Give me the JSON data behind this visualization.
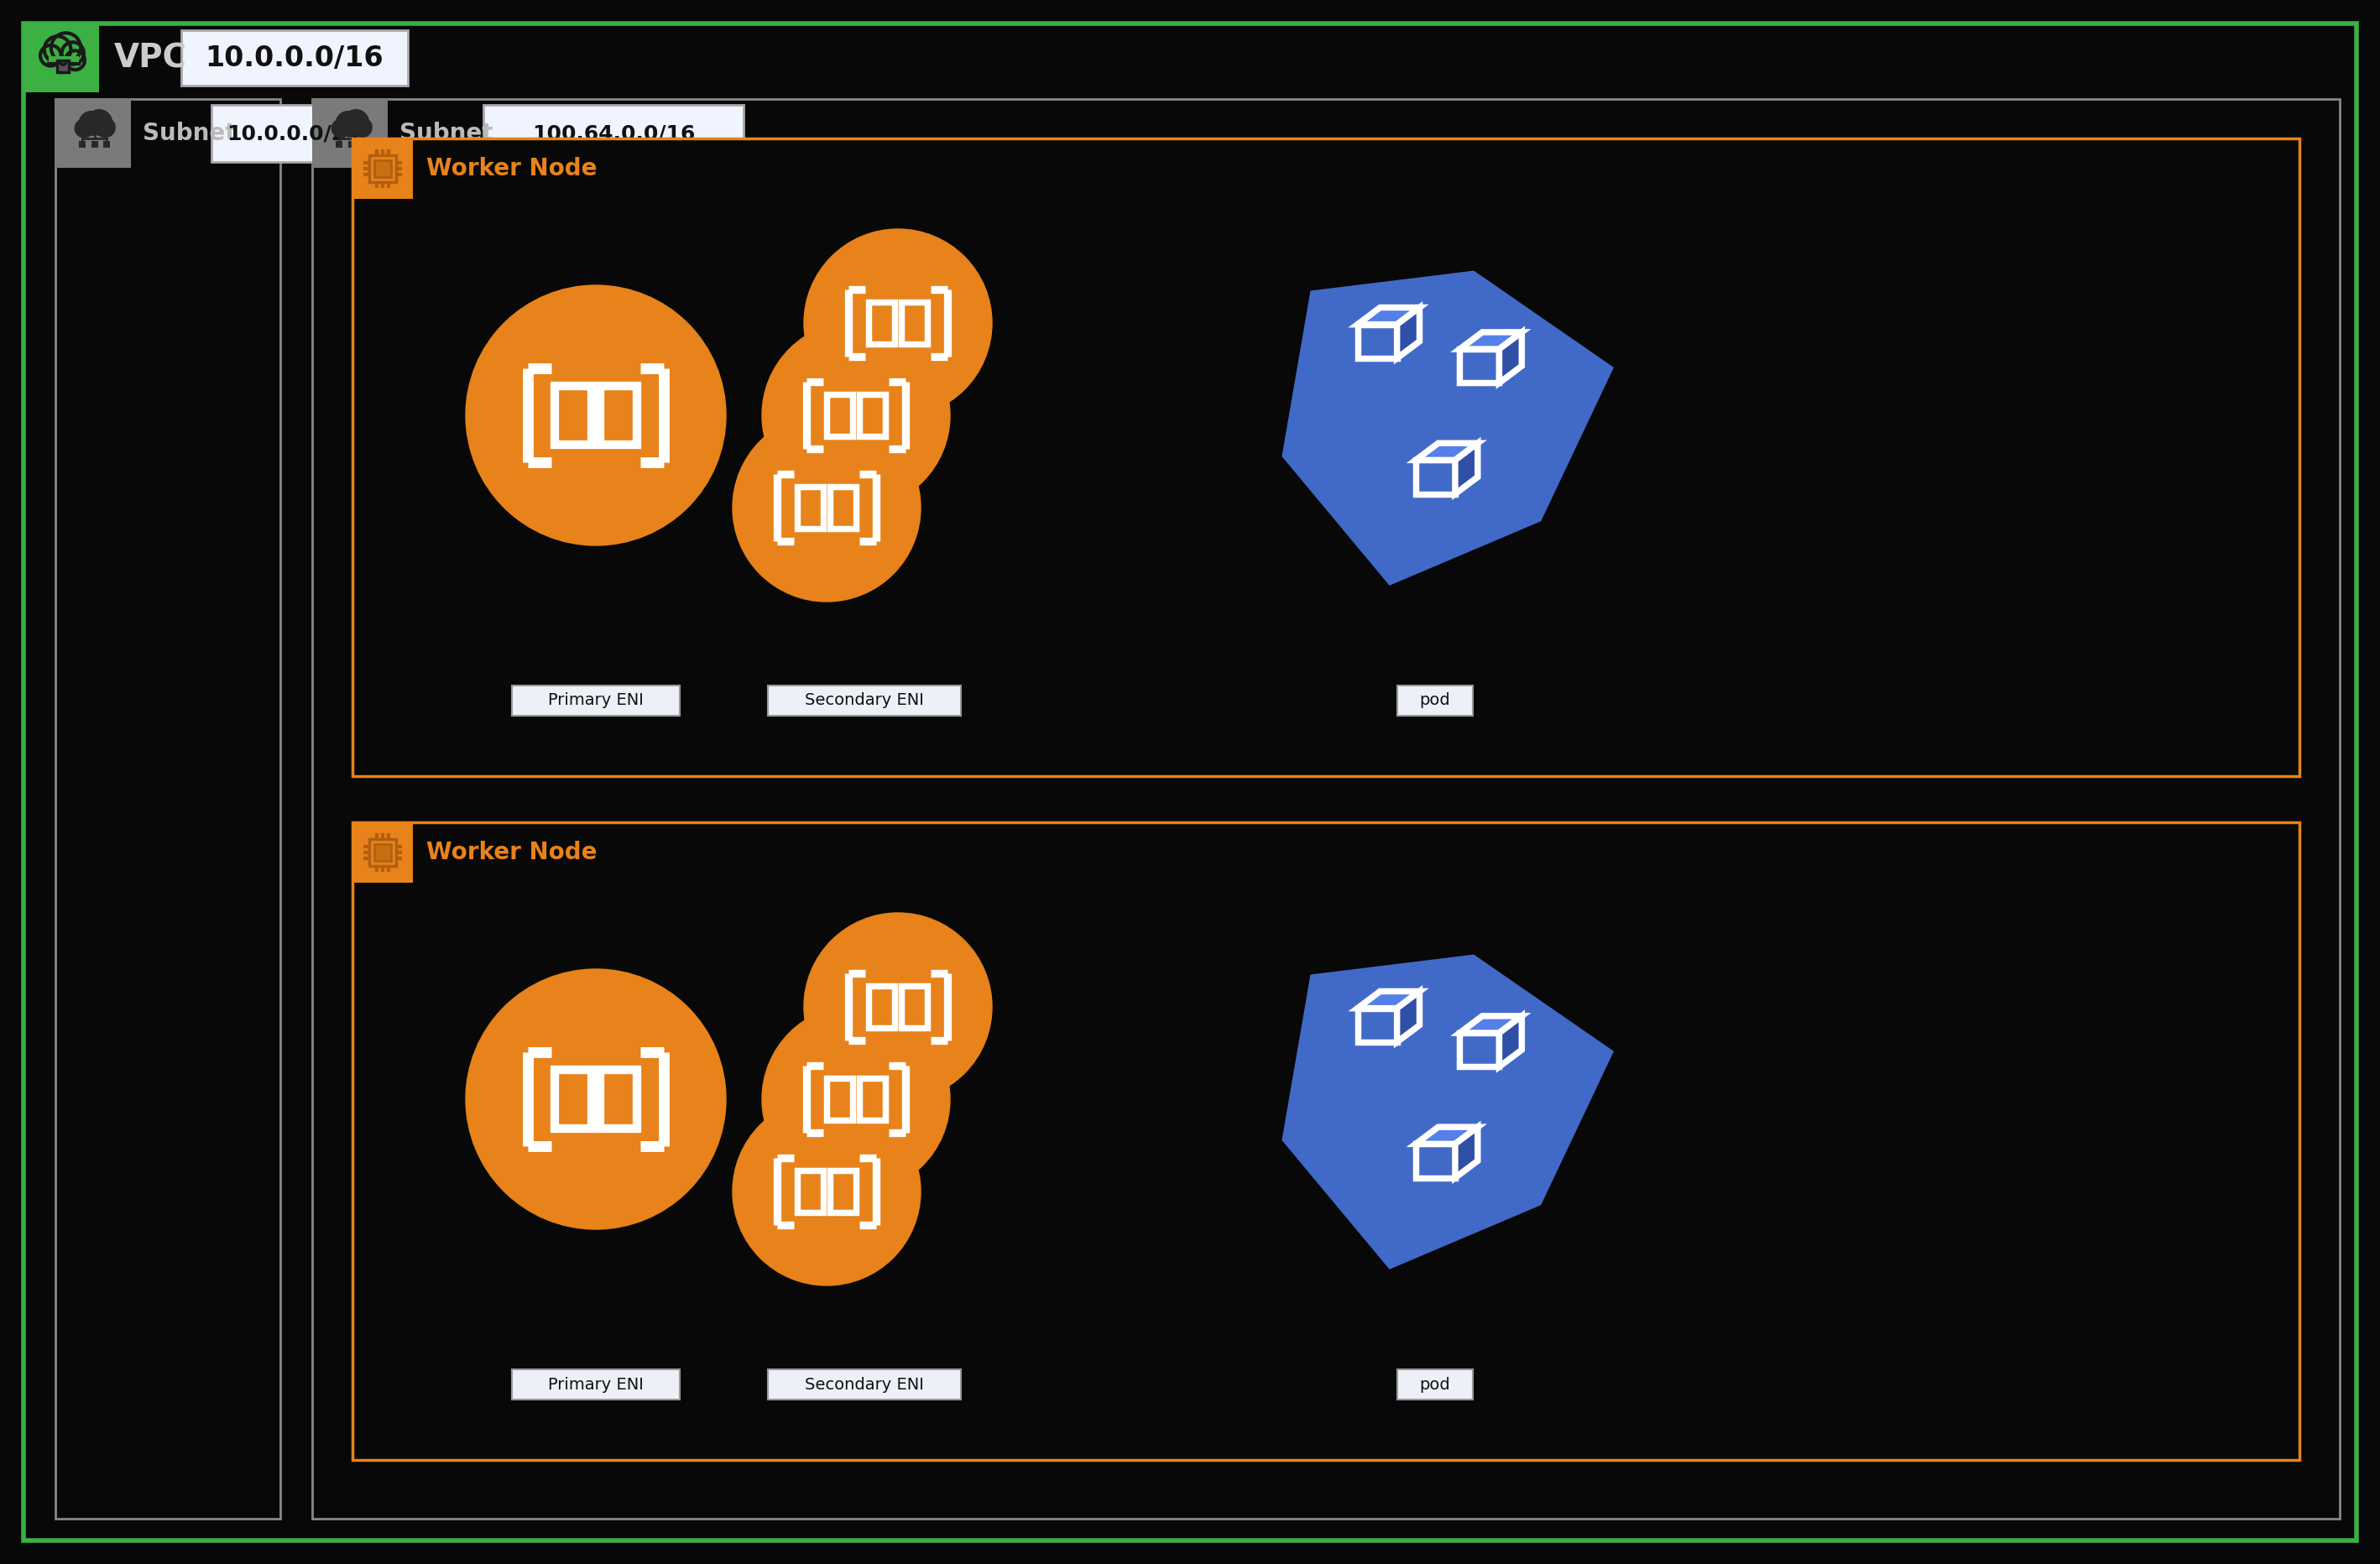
{
  "bg_color": "#080808",
  "vpc_border_color": "#3cb043",
  "vpc_header_bg": "#3cb043",
  "vpc_label": "VPC",
  "vpc_cidr": "10.0.0.0/16",
  "subnet1_label": "Subnet",
  "subnet1_cidr": "10.0.0.0/24",
  "subnet2_label": "Subnet",
  "subnet2_cidr": "100.64.0.0/16",
  "subnet_header_bg": "#7a7a7a",
  "subnet_border_color": "#888888",
  "worker_node_label": "Worker Node",
  "worker_node_border_color": "#e8821a",
  "worker_node_header_bg": "#e8821a",
  "primary_eni_label": "Primary ENI",
  "secondary_eni_label": "Secondary ENI",
  "pod_label": "pod",
  "eni_color": "#e8821a",
  "pod_color": "#4169c8",
  "label_bg": "#eef0f8",
  "label_text": "#111111",
  "white": "#ffffff",
  "cidr_bg": "#f0f4ff",
  "gray_text": "#bbbbbb",
  "orange_text": "#e8821a"
}
